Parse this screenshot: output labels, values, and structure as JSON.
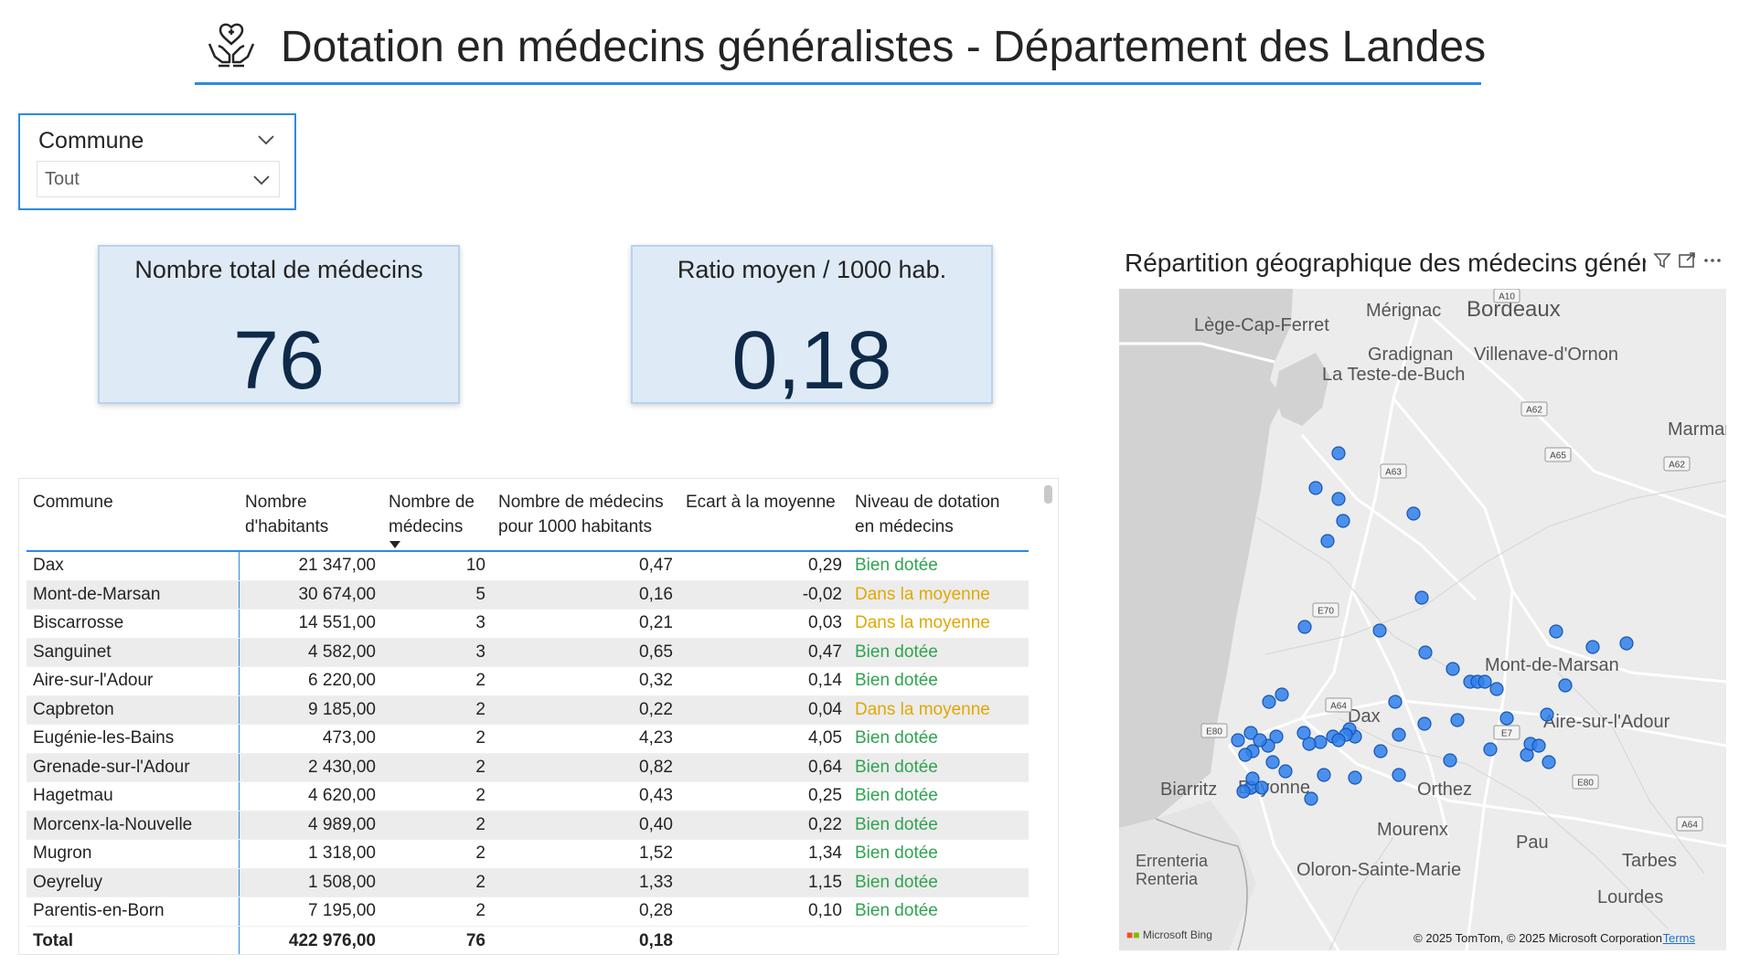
{
  "header": {
    "title": "Dotation en médecins généralistes - Département des Landes",
    "icon": "hands-heart-icon"
  },
  "slicer": {
    "label": "Commune",
    "value": "Tout"
  },
  "kpis": [
    {
      "label": "Nombre total de médecins",
      "value": "76"
    },
    {
      "label": "Ratio moyen / 1000 hab.",
      "value": "0,18"
    }
  ],
  "table": {
    "headers": [
      "Commune",
      "Nombre d'habitants",
      "Nombre de médecins",
      "Nombre de médecins pour 1000 habitants",
      "Ecart à la moyenne",
      "Niveau de dotation en médecins"
    ],
    "rows": [
      [
        "Dax",
        "21 347,00",
        "10",
        "0,47",
        "0,29",
        "Bien dotée"
      ],
      [
        "Mont-de-Marsan",
        "30 674,00",
        "5",
        "0,16",
        "-0,02",
        "Dans la moyenne"
      ],
      [
        "Biscarrosse",
        "14 551,00",
        "3",
        "0,21",
        "0,03",
        "Dans la moyenne"
      ],
      [
        "Sanguinet",
        "4 582,00",
        "3",
        "0,65",
        "0,47",
        "Bien dotée"
      ],
      [
        "Aire-sur-l'Adour",
        "6 220,00",
        "2",
        "0,32",
        "0,14",
        "Bien dotée"
      ],
      [
        "Capbreton",
        "9 185,00",
        "2",
        "0,22",
        "0,04",
        "Dans la moyenne"
      ],
      [
        "Eugénie-les-Bains",
        "473,00",
        "2",
        "4,23",
        "4,05",
        "Bien dotée"
      ],
      [
        "Grenade-sur-l'Adour",
        "2 430,00",
        "2",
        "0,82",
        "0,64",
        "Bien dotée"
      ],
      [
        "Hagetmau",
        "4 620,00",
        "2",
        "0,43",
        "0,25",
        "Bien dotée"
      ],
      [
        "Morcenx-la-Nouvelle",
        "4 989,00",
        "2",
        "0,40",
        "0,22",
        "Bien dotée"
      ],
      [
        "Mugron",
        "1 318,00",
        "2",
        "1,52",
        "1,34",
        "Bien dotée"
      ],
      [
        "Oeyreluy",
        "1 508,00",
        "2",
        "1,33",
        "1,15",
        "Bien dotée"
      ],
      [
        "Parentis-en-Born",
        "7 195,00",
        "2",
        "0,28",
        "0,10",
        "Bien dotée"
      ]
    ],
    "total": [
      "Total",
      "422 976,00",
      "76",
      "0,18"
    ],
    "level_colors": {
      "Bien dotée": "#2ea44f",
      "Dans la moyenne": "#e0a800"
    }
  },
  "map": {
    "title": "Répartition géographique des médecins généralistes",
    "places": [
      "Mérignac",
      "Bordeaux",
      "Lège-Cap-Ferret",
      "Gradignan",
      "Villenave-d'Ornon",
      "La Teste-de-Buch",
      "Marmande",
      "Mont-de-Marsan",
      "Dax",
      "Aire-sur-l'Adour",
      "Biarritz",
      "Bayonne",
      "Orthez",
      "Mourenx",
      "Pau",
      "Errenteria Renteria",
      "Oloron-Sainte-Marie",
      "Tarbes",
      "Lourdes"
    ],
    "roads": [
      "A10",
      "A63",
      "A62",
      "A65",
      "A62",
      "E70",
      "A64",
      "E80",
      "E7",
      "E80",
      "A64"
    ],
    "attribution": "© 2025 TomTom, © 2025 Microsoft Corporation",
    "terms": "Terms",
    "provider": "Microsoft Bing",
    "marker_color": "#2f80ed"
  }
}
